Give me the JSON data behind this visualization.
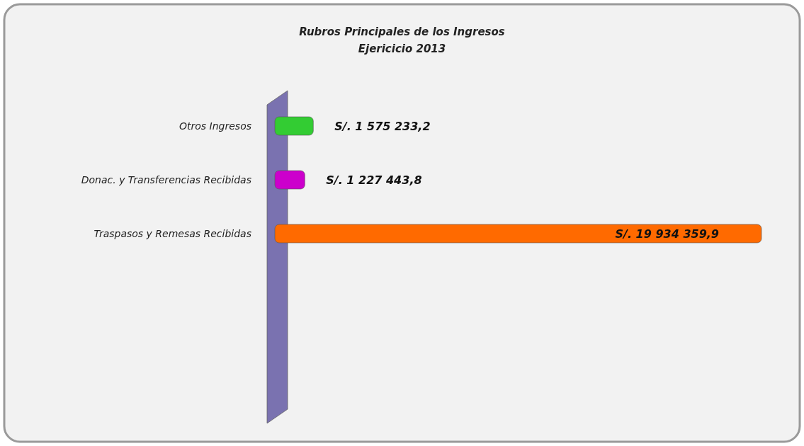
{
  "chart_data": {
    "type": "bar",
    "orientation": "horizontal",
    "title": "Rubros Principales  de los Ingresos\nEjericicio  2013",
    "categories": [
      "Otros Ingresos",
      "Donac. y Transferencias Recibidas",
      "Traspasos y Remesas Recibidas"
    ],
    "values": [
      1575233.2,
      1227443.8,
      19934359.9
    ],
    "value_labels": [
      "S/. 1  575 233,2",
      "S/. 1 227 443,8",
      "S/. 19 934 359,9"
    ],
    "colors": [
      "#33cc33",
      "#cc00cc",
      "#ff6a00"
    ]
  }
}
